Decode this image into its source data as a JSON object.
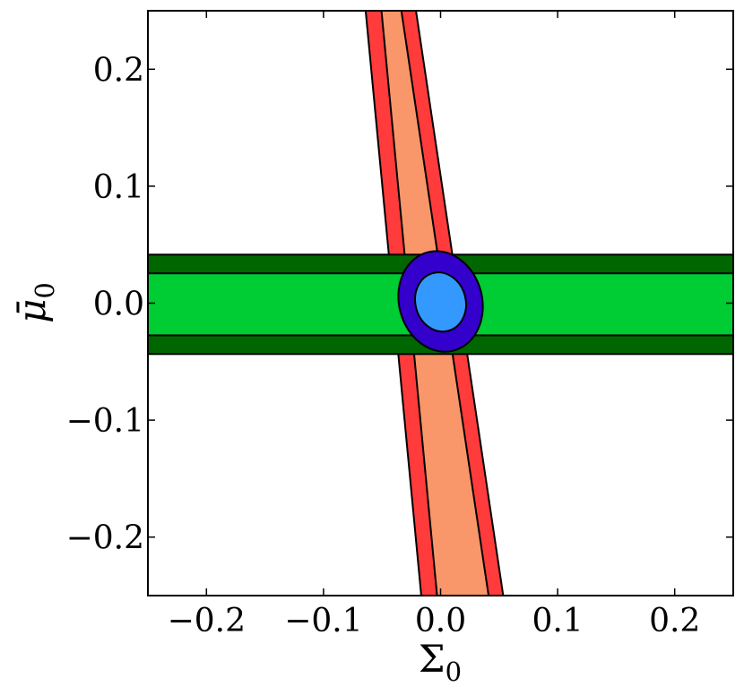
{
  "chart_data": {
    "type": "contour",
    "title": "",
    "xlabel": "Σ",
    "xlabel_subscript": "0",
    "ylabel": "μ̄",
    "ylabel_subscript": "0",
    "xlim": [
      -0.25,
      0.25
    ],
    "ylim": [
      -0.25,
      0.25
    ],
    "xticks": [
      -0.2,
      -0.1,
      0.0,
      0.1,
      0.2
    ],
    "yticks": [
      -0.2,
      -0.1,
      0.0,
      0.1,
      0.2
    ],
    "xtick_labels": [
      "−0.2",
      "−0.1",
      "0.0",
      "0.1",
      "0.2"
    ],
    "ytick_labels": [
      "−0.2",
      "−0.1",
      "0.0",
      "0.1",
      "0.2"
    ],
    "grid": false,
    "regions": [
      {
        "shape": "slanted_band",
        "level": "outer",
        "color": "#ff3b3b",
        "top": {
          "y": 0.25,
          "x_left": -0.064,
          "x_right": -0.021
        },
        "bottom": {
          "y": -0.25,
          "x_left": -0.0165,
          "x_right": 0.0535
        }
      },
      {
        "shape": "slanted_band",
        "level": "inner",
        "color": "#f9976b",
        "top": {
          "y": 0.25,
          "x_left": -0.0505,
          "x_right": -0.0335
        },
        "bottom": {
          "y": -0.25,
          "x_left": -0.003,
          "x_right": 0.041
        }
      },
      {
        "shape": "horizontal_band",
        "level": "outer",
        "color": "#006600",
        "y_range": [
          -0.0435,
          0.0415
        ]
      },
      {
        "shape": "horizontal_band",
        "level": "inner",
        "color": "#00cc33",
        "y_range": [
          -0.0275,
          0.0255
        ]
      },
      {
        "shape": "ellipse",
        "level": "outer",
        "color": "#3300cc",
        "center": [
          0.0,
          0.0015
        ],
        "semi_axes": [
          0.0355,
          0.0435
        ],
        "rotation_deg": -15
      },
      {
        "shape": "ellipse",
        "level": "inner",
        "color": "#3399ff",
        "center": [
          0.0,
          0.001
        ],
        "semi_axes": [
          0.0215,
          0.0255
        ],
        "rotation_deg": -15
      }
    ]
  }
}
